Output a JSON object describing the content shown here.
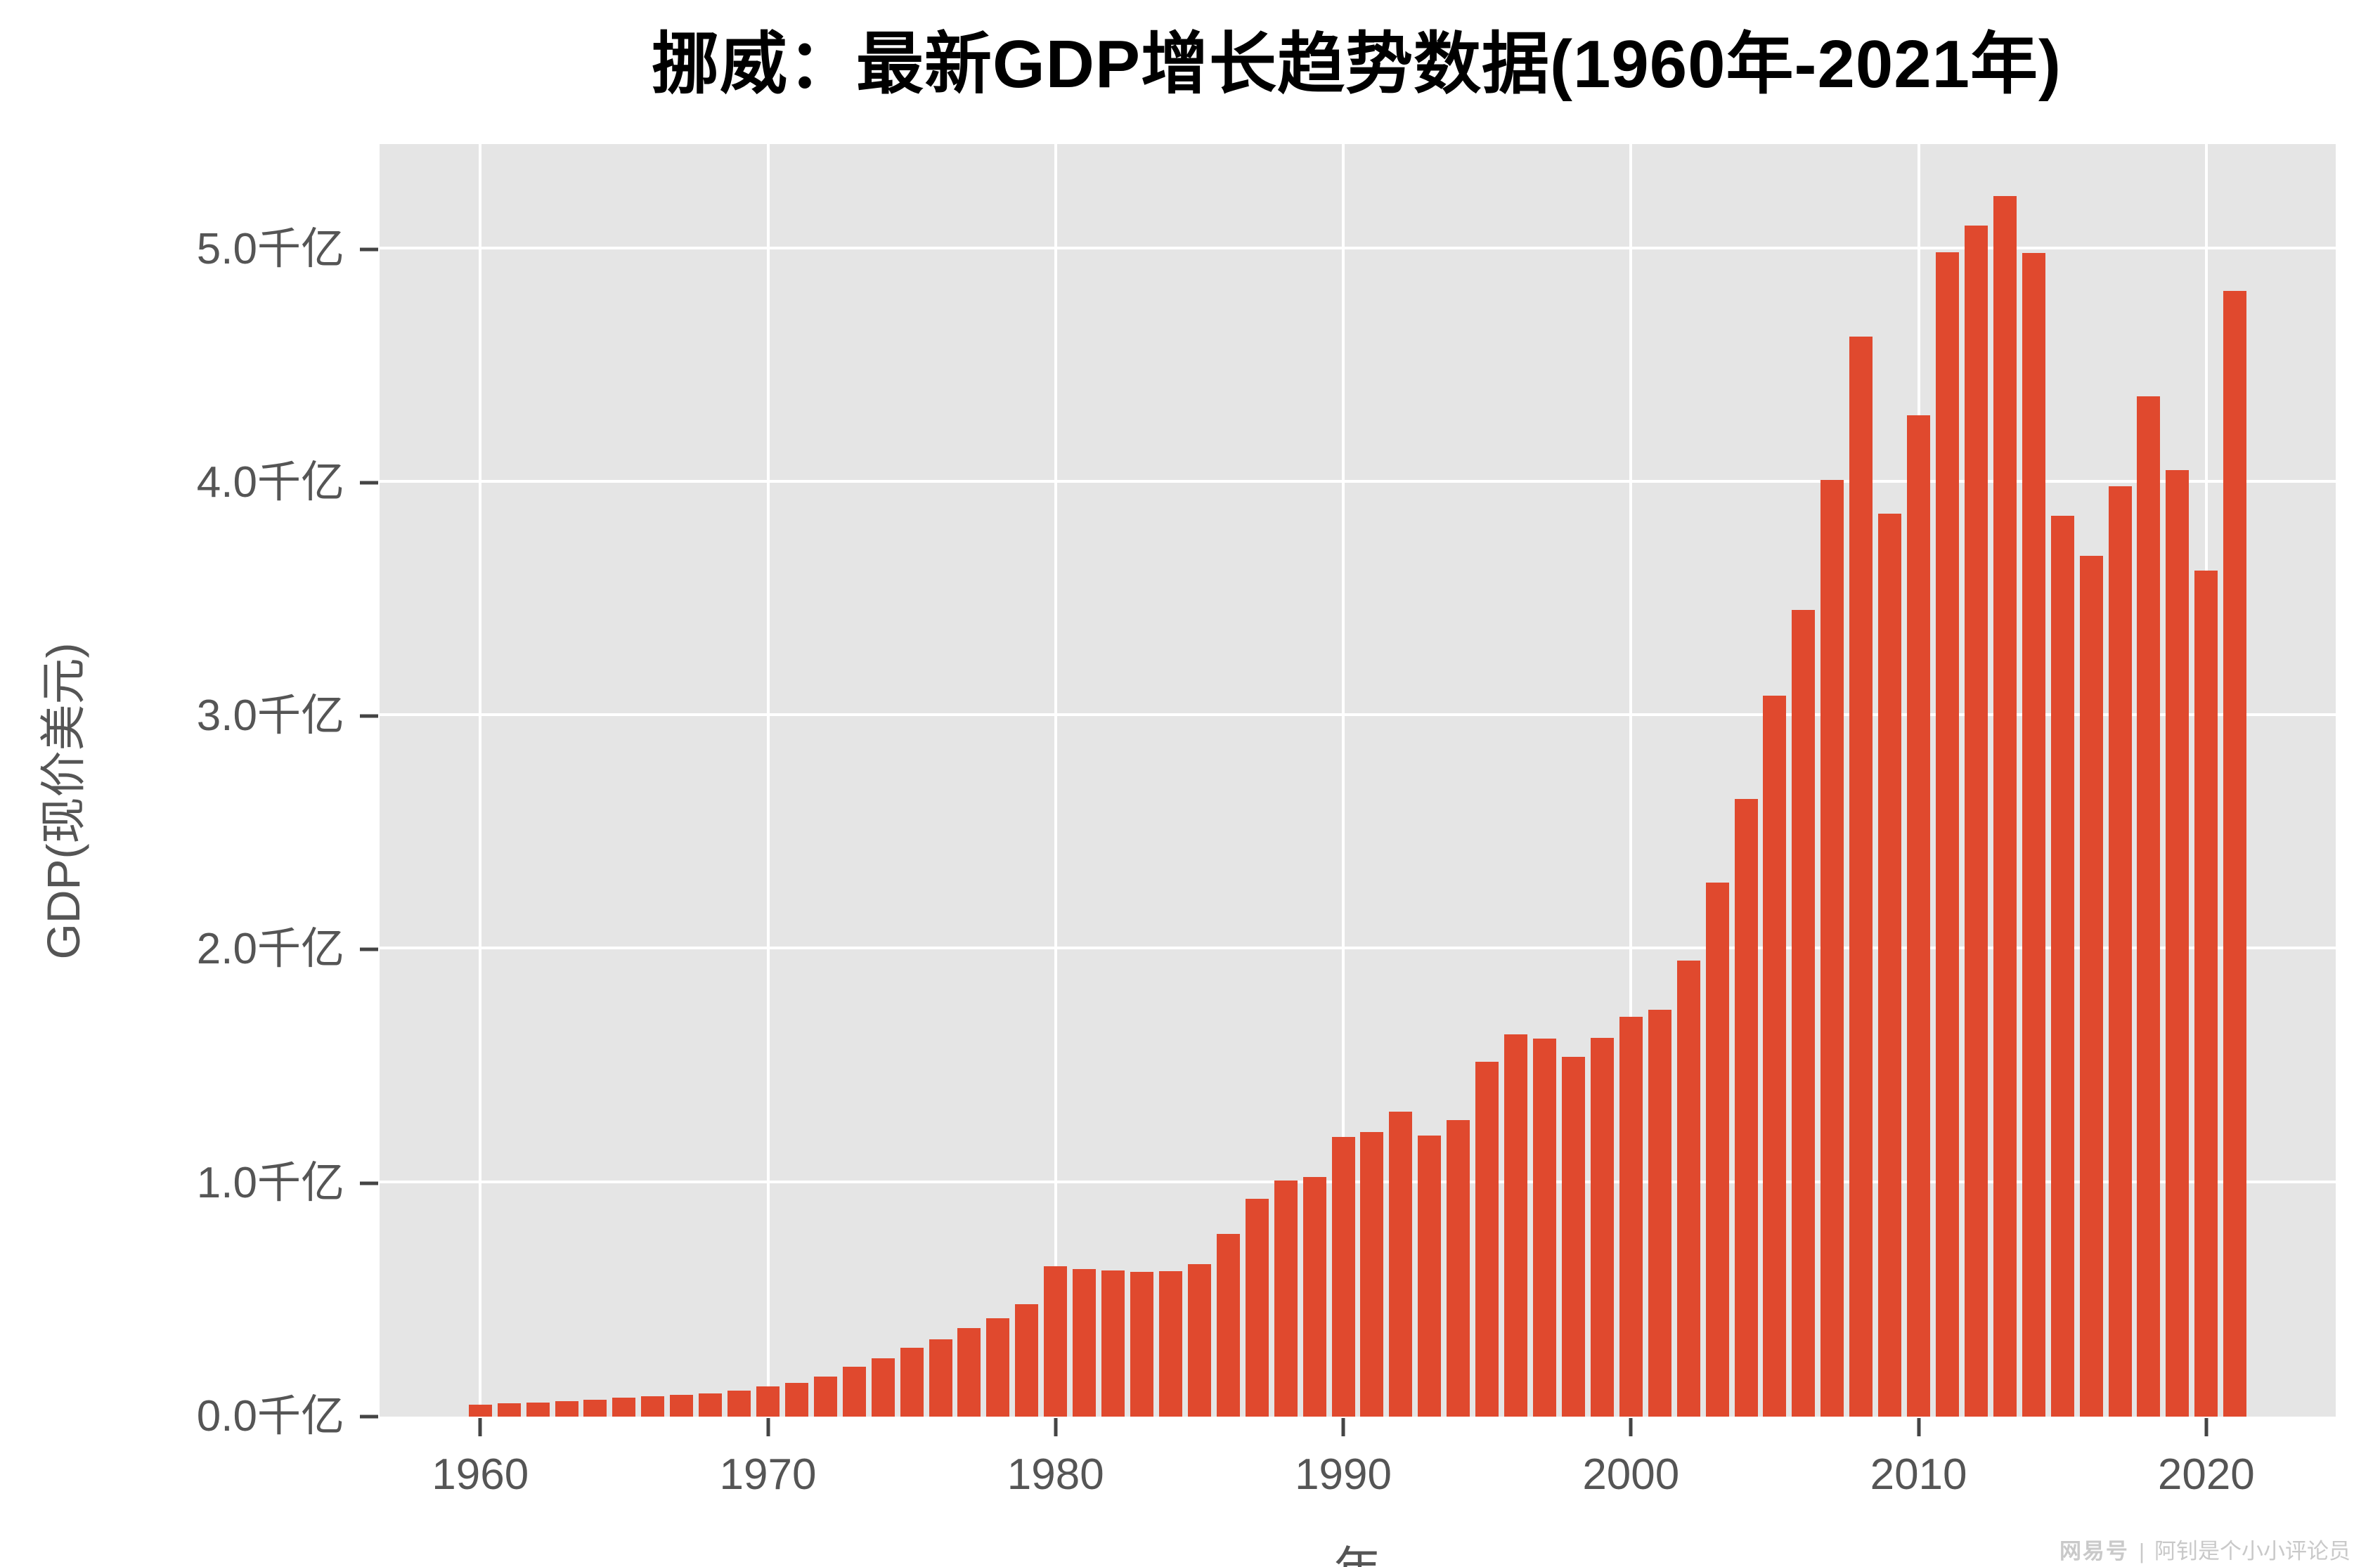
{
  "title": "挪威：最新GDP增长趋势数据(1960年-2021年)",
  "watermark": {
    "brand": "网易号",
    "divider": "|",
    "author": "阿钊是个小小评论员"
  },
  "chart_data": {
    "type": "bar",
    "title": "挪威：最新GDP增长趋势数据(1960年-2021年)",
    "xlabel": "年",
    "ylabel": "GDP(现价美元)",
    "unit": "千亿 (hundred billion current US$)",
    "categories": [
      1960,
      1961,
      1962,
      1963,
      1964,
      1965,
      1966,
      1967,
      1968,
      1969,
      1970,
      1971,
      1972,
      1973,
      1974,
      1975,
      1976,
      1977,
      1978,
      1979,
      1980,
      1981,
      1982,
      1983,
      1984,
      1985,
      1986,
      1987,
      1988,
      1989,
      1990,
      1991,
      1992,
      1993,
      1994,
      1995,
      1996,
      1997,
      1998,
      1999,
      2000,
      2001,
      2002,
      2003,
      2004,
      2005,
      2006,
      2007,
      2008,
      2009,
      2010,
      2011,
      2012,
      2013,
      2014,
      2015,
      2016,
      2017,
      2018,
      2019,
      2020,
      2021
    ],
    "values": [
      0.052,
      0.056,
      0.061,
      0.065,
      0.072,
      0.081,
      0.087,
      0.094,
      0.1,
      0.11,
      0.128,
      0.146,
      0.171,
      0.214,
      0.249,
      0.296,
      0.33,
      0.38,
      0.421,
      0.483,
      0.644,
      0.633,
      0.626,
      0.619,
      0.623,
      0.654,
      0.783,
      0.933,
      1.012,
      1.025,
      1.198,
      1.219,
      1.306,
      1.204,
      1.271,
      1.52,
      1.636,
      1.618,
      1.542,
      1.623,
      1.713,
      1.741,
      1.954,
      2.288,
      2.645,
      3.089,
      3.454,
      4.011,
      4.626,
      3.866,
      4.288,
      4.988,
      5.102,
      5.227,
      4.983,
      3.858,
      3.688,
      3.985,
      4.37,
      4.055,
      3.622,
      4.822
    ],
    "y_ticks": [
      {
        "value": 0,
        "label": "0.0千亿"
      },
      {
        "value": 1,
        "label": "1.0千亿"
      },
      {
        "value": 2,
        "label": "2.0千亿"
      },
      {
        "value": 3,
        "label": "3.0千亿"
      },
      {
        "value": 4,
        "label": "4.0千亿"
      },
      {
        "value": 5,
        "label": "5.0千亿"
      }
    ],
    "x_ticks": [
      {
        "year": 1960,
        "label": "1960"
      },
      {
        "year": 1970,
        "label": "1970"
      },
      {
        "year": 1980,
        "label": "1980"
      },
      {
        "year": 1990,
        "label": "1990"
      },
      {
        "year": 2000,
        "label": "2000"
      },
      {
        "year": 2010,
        "label": "2010"
      },
      {
        "year": 2020,
        "label": "2020"
      }
    ],
    "xlim": [
      1956.5,
      2024.5
    ],
    "ylim": [
      0,
      5.45
    ],
    "grid": "major white gridlines on gray panel, no minor grid",
    "legend": "none",
    "colors": {
      "bar": "#E0492E",
      "panel_bg": "#E5E5E5",
      "grid": "#FFFFFF",
      "tick_mark": "#444444",
      "tick_text": "#555555",
      "title_text": "#000000",
      "watermark": "#C9C9C9"
    }
  }
}
